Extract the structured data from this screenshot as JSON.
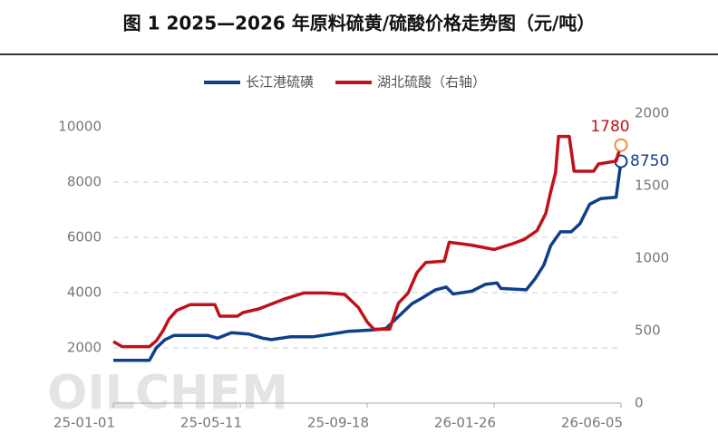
{
  "chart_data": {
    "type": "line",
    "title": "图 1 2025—2026 年原料硫黄/硫酸价格走势图（元/吨）",
    "watermark": "OILCHEM",
    "xlim": [
      "25-01-01",
      "26-06-05"
    ],
    "xticks": [
      "25-01-01",
      "25-05-11",
      "25-09-18",
      "26-01-26",
      "26-06-05"
    ],
    "ylim": [
      0,
      10000
    ],
    "yticks": [
      2000,
      4000,
      6000,
      8000,
      10000
    ],
    "y2lim": [
      0,
      2000
    ],
    "y2ticks": [
      0,
      500,
      1000,
      1500,
      2000
    ],
    "grid": true,
    "legend": "top",
    "series": [
      {
        "name": "长江港硫磺",
        "color": "#103f8a",
        "x": [
          "25-01-01",
          "25-02-07",
          "25-02-14",
          "25-02-23",
          "25-03-04",
          "25-04-08",
          "25-04-18",
          "25-05-02",
          "25-05-20",
          "25-06-03",
          "25-06-12",
          "25-07-01",
          "25-07-24",
          "25-08-12",
          "25-08-30",
          "25-09-23",
          "25-10-07",
          "25-10-16",
          "25-10-25",
          "25-11-03",
          "25-11-13",
          "25-11-27",
          "25-12-08",
          "25-12-15",
          "26-01-03",
          "26-01-17",
          "26-01-29",
          "26-02-02",
          "26-02-28",
          "26-03-09",
          "26-03-18",
          "26-03-25",
          "26-04-04",
          "26-04-15",
          "26-04-24",
          "26-05-04",
          "26-05-15",
          "26-05-31",
          "26-06-05"
        ],
        "values": [
          1550,
          1550,
          2000,
          2300,
          2450,
          2450,
          2350,
          2550,
          2500,
          2350,
          2300,
          2400,
          2400,
          2500,
          2600,
          2650,
          2700,
          3000,
          3300,
          3600,
          3800,
          4100,
          4200,
          3950,
          4050,
          4300,
          4350,
          4150,
          4100,
          4500,
          5000,
          5700,
          6200,
          6200,
          6500,
          7200,
          7400,
          7450,
          8750
        ]
      },
      {
        "name": "湖北硫酸（右轴）",
        "color": "#c0111b",
        "axis": "y2",
        "x": [
          "25-01-01",
          "25-01-10",
          "25-02-07",
          "25-02-14",
          "25-02-21",
          "25-02-27",
          "25-03-07",
          "25-03-21",
          "25-04-15",
          "25-04-20",
          "25-05-08",
          "25-05-14",
          "25-05-30",
          "25-06-26",
          "25-07-15",
          "25-08-07",
          "25-08-26",
          "25-09-09",
          "25-09-18",
          "25-09-25",
          "25-10-11",
          "25-10-20",
          "25-10-30",
          "25-11-08",
          "25-11-17",
          "25-12-06",
          "25-12-11",
          "26-01-03",
          "26-01-26",
          "26-02-14",
          "26-02-26",
          "26-03-11",
          "26-03-20",
          "26-03-25",
          "26-03-30",
          "26-04-02",
          "26-04-13",
          "26-04-18",
          "26-05-08",
          "26-05-13",
          "26-05-31",
          "26-06-05"
        ],
        "values": [
          425,
          390,
          390,
          430,
          500,
          580,
          640,
          680,
          680,
          600,
          600,
          625,
          650,
          720,
          760,
          760,
          750,
          660,
          560,
          510,
          510,
          690,
          760,
          900,
          970,
          980,
          1110,
          1090,
          1060,
          1100,
          1130,
          1190,
          1310,
          1460,
          1590,
          1840,
          1840,
          1600,
          1600,
          1650,
          1670,
          1780
        ]
      }
    ]
  }
}
